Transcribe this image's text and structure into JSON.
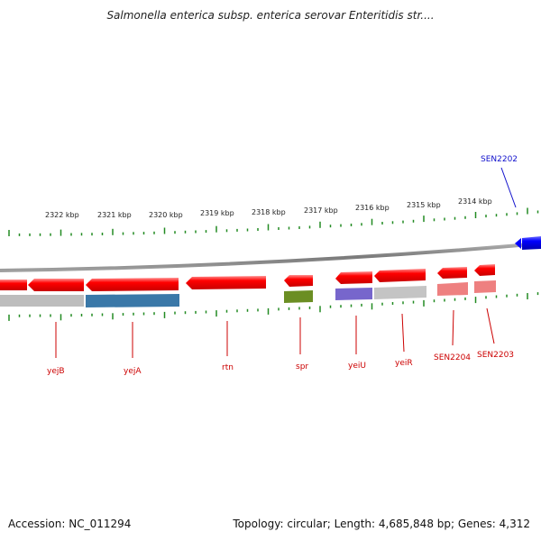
{
  "title": "Salmonella enterica subsp. enterica serovar Enteritidis str....",
  "footer": {
    "accession": "Accession: NC_011294",
    "stats": "Topology: circular; Length: 4,685,848 bp; Genes: 4,312"
  },
  "scale_labels": [
    "2322 kbp",
    "2321 kbp",
    "2320 kbp",
    "2319 kbp",
    "2318 kbp",
    "2317 kbp",
    "2316 kbp",
    "2315 kbp",
    "2314 kbp"
  ],
  "genes": [
    {
      "label": "yejB",
      "strand": "reverse"
    },
    {
      "label": "yejA",
      "strand": "reverse"
    },
    {
      "label": "rtn",
      "strand": "reverse"
    },
    {
      "label": "spr",
      "strand": "reverse"
    },
    {
      "label": "yeiU",
      "strand": "reverse"
    },
    {
      "label": "yeiR",
      "strand": "reverse"
    },
    {
      "label": "SEN2204",
      "strand": "reverse"
    },
    {
      "label": "SEN2203",
      "strand": "reverse"
    },
    {
      "label": "SEN2202",
      "strand": "forward"
    }
  ],
  "colors": {
    "gene": "#ff0000",
    "forward_gene": "#0000ff",
    "tick": "#228b22",
    "backbone": "#808080",
    "label_reverse": "#cc0000",
    "label_forward": "#1010cc"
  }
}
